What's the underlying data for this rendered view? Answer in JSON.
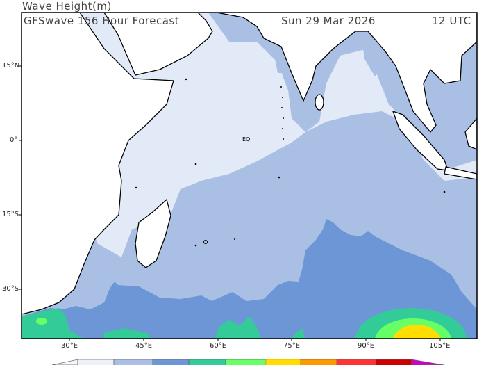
{
  "header": {
    "title": "Wave Height(m)",
    "model_label": "GFSwave 156 Hour Forecast",
    "date": "Sun 29 Mar 2026",
    "time": "12 UTC"
  },
  "map": {
    "region": "Indian Ocean",
    "equator_label": "EQ",
    "lat_labels": [
      "15°N",
      "0°",
      "15°S",
      "30°S"
    ],
    "lon_labels": [
      "30°E",
      "45°E",
      "60°E",
      "75°E",
      "90°E",
      "105°E"
    ],
    "colors": {
      "land": "#ffffff",
      "calm": "#e3eaf7",
      "light_blue": "#a9c0e4",
      "blue": "#6d96d6",
      "green": "#33cc99",
      "light_green": "#66ff66",
      "yellow": "#ffdd00"
    }
  },
  "colorbar": {
    "colors": [
      "#f4f4fa",
      "#eef0f8",
      "#a9c0e4",
      "#6d96d6",
      "#33cc99",
      "#66ff66",
      "#ffdd00",
      "#ff9900",
      "#ff3333",
      "#cc0000",
      "#cc00cc"
    ]
  }
}
